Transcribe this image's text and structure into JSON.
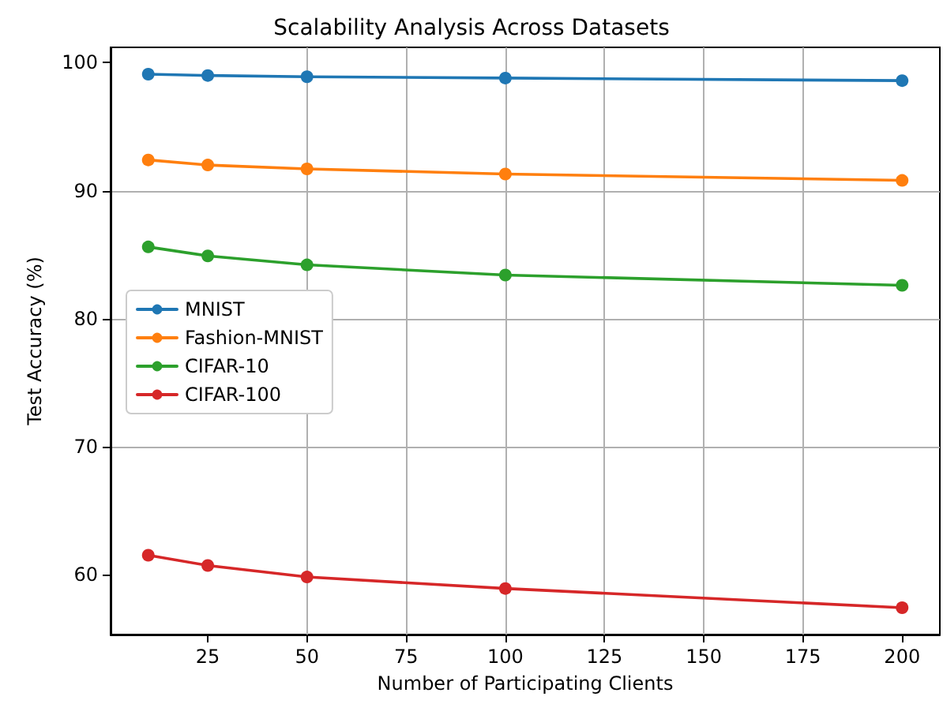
{
  "chart_data": {
    "type": "line",
    "title": "Scalability Analysis Across Datasets",
    "xlabel": "Number of Participating Clients",
    "ylabel": "Test Accuracy (%)",
    "x": [
      10,
      25,
      50,
      100,
      200
    ],
    "series": [
      {
        "name": "MNIST",
        "color": "#1f77b4",
        "values": [
          99.1,
          99.0,
          98.9,
          98.8,
          98.6
        ]
      },
      {
        "name": "Fashion-MNIST",
        "color": "#ff7f0e",
        "values": [
          92.4,
          92.0,
          91.7,
          91.3,
          90.8
        ]
      },
      {
        "name": "CIFAR-10",
        "color": "#2ca02c",
        "values": [
          85.6,
          84.9,
          84.2,
          83.4,
          82.6
        ]
      },
      {
        "name": "CIFAR-100",
        "color": "#d62728",
        "values": [
          61.5,
          60.7,
          59.8,
          58.9,
          57.4
        ]
      }
    ],
    "xlim": [
      0.5,
      209.5
    ],
    "xticks": [
      25,
      50,
      75,
      100,
      125,
      150,
      175,
      200
    ],
    "ylim": [
      55.3,
      101.2
    ],
    "yticks": [
      60,
      70,
      80,
      90,
      100
    ],
    "grid": true,
    "legend": "center left",
    "marker": "circle",
    "line_style": "solid"
  }
}
